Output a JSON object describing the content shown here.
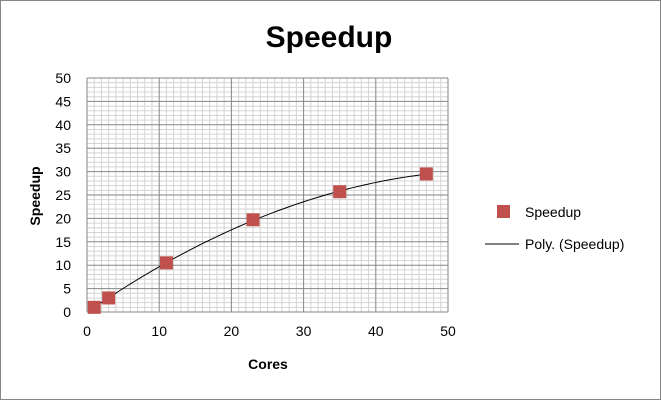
{
  "chart_data": {
    "type": "scatter",
    "title": "Speedup",
    "xlabel": "Cores",
    "ylabel": "Speedup",
    "xlim": [
      0,
      50
    ],
    "ylim": [
      0,
      50
    ],
    "xticks": [
      0,
      10,
      20,
      30,
      40,
      50
    ],
    "yticks": [
      0,
      5,
      10,
      15,
      20,
      25,
      30,
      35,
      40,
      45,
      50
    ],
    "grid": true,
    "legend_position": "right",
    "series": [
      {
        "name": "Speedup",
        "kind": "scatter",
        "marker": "square",
        "color": "#c0504d",
        "x": [
          1,
          3,
          11,
          23,
          35,
          47
        ],
        "y": [
          1,
          3,
          10.5,
          19.7,
          25.7,
          29.5
        ]
      },
      {
        "name": "Poly. (Speedup)",
        "kind": "trendline",
        "fit": "polynomial",
        "color": "#000000"
      }
    ]
  }
}
